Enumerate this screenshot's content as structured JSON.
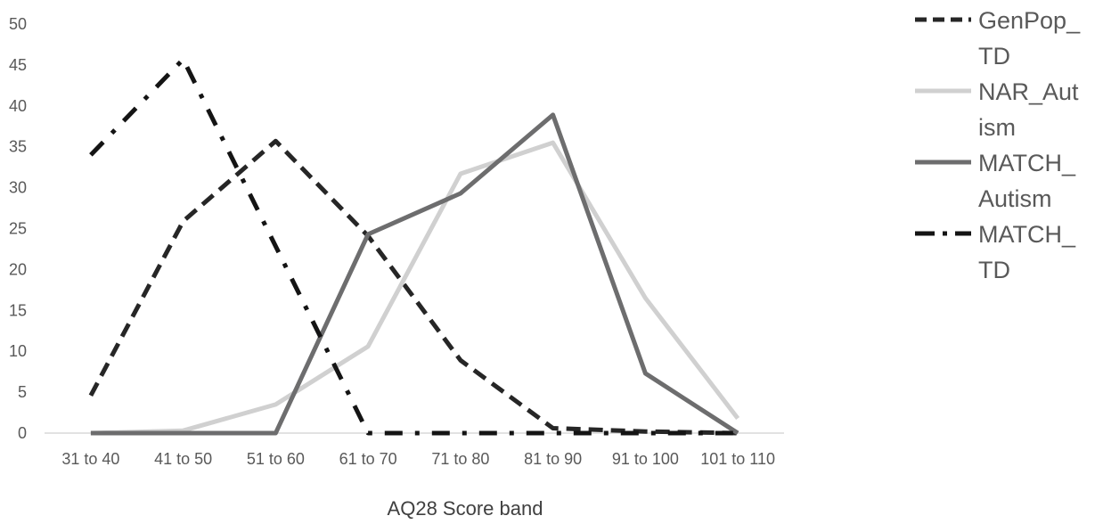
{
  "chart_data": {
    "type": "line",
    "title": "",
    "xlabel": "AQ28 Score band",
    "ylabel": "",
    "ylim": [
      0,
      50
    ],
    "yticks": [
      0,
      5,
      10,
      15,
      20,
      25,
      30,
      35,
      40,
      45,
      50
    ],
    "grid": false,
    "legend_position": "right",
    "categories": [
      "31 to 40",
      "41 to 50",
      "51 to 60",
      "61 to 70",
      "71 to 80",
      "81 to 90",
      "91 to 100",
      "101 to 110"
    ],
    "series": [
      {
        "name": "GenPop_TD",
        "legend_lines": [
          "GenPop_",
          "TD"
        ],
        "color": "#262626",
        "style": "dash",
        "width": 5,
        "values": [
          4.6,
          25.9,
          35.7,
          24.1,
          8.9,
          0.6,
          0.2,
          0
        ]
      },
      {
        "name": "NAR_Autism",
        "legend_lines": [
          "NAR_Aut",
          "ism"
        ],
        "color": "#d0d0d0",
        "style": "solid",
        "width": 5,
        "values": [
          0,
          0.3,
          3.5,
          10.6,
          31.7,
          35.5,
          16.5,
          1.8
        ]
      },
      {
        "name": "MATCH_Autism",
        "legend_lines": [
          "MATCH_",
          "Autism"
        ],
        "color": "#6d6d6e",
        "style": "solid",
        "width": 5,
        "values": [
          0,
          0,
          0,
          24.3,
          29.3,
          38.9,
          7.3,
          0
        ]
      },
      {
        "name": "MATCH_TD",
        "legend_lines": [
          "MATCH_",
          "TD"
        ],
        "color": "#141414",
        "style": "dashdot",
        "width": 5,
        "values": [
          34.0,
          45.7,
          null,
          0,
          0,
          0,
          0,
          0
        ]
      }
    ]
  }
}
